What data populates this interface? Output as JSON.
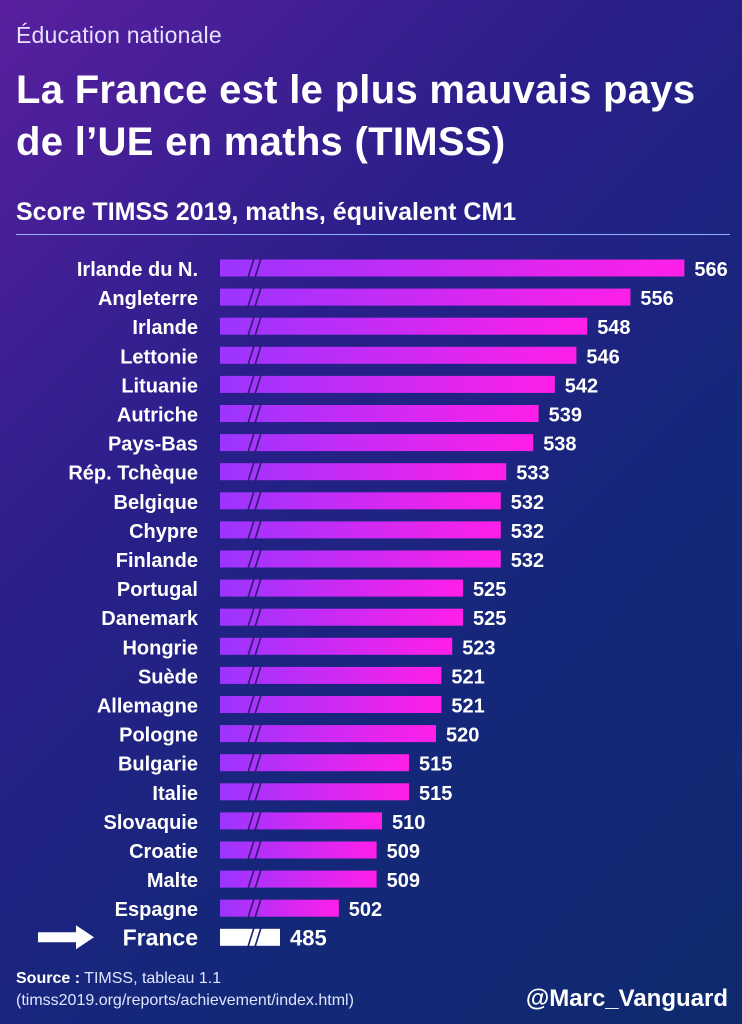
{
  "header": {
    "supertitle": "Éducation nationale",
    "title": "La France est le plus mauvais pays de l’UE en maths (TIMSS)",
    "subtitle": "Score TIMSS 2019, maths, équivalent CM1"
  },
  "footer": {
    "source_label": "Source :",
    "source_text": "TIMSS, tableau 1.1",
    "source_url": "(timss2019.org/reports/achievement/index.html)",
    "handle": "@Marc_Vanguard"
  },
  "chart_data": {
    "type": "bar",
    "orientation": "horizontal",
    "categories": [
      "Irlande du N.",
      "Angleterre",
      "Irlande",
      "Lettonie",
      "Lituanie",
      "Autriche",
      "Pays-Bas",
      "Rép. Tchèque",
      "Belgique",
      "Chypre",
      "Finlande",
      "Portugal",
      "Danemark",
      "Hongrie",
      "Suède",
      "Allemagne",
      "Pologne",
      "Bulgarie",
      "Italie",
      "Slovaquie",
      "Croatie",
      "Malte",
      "Espagne",
      "France"
    ],
    "values": [
      566,
      556,
      548,
      546,
      542,
      539,
      538,
      533,
      532,
      532,
      532,
      525,
      525,
      523,
      521,
      521,
      520,
      515,
      515,
      510,
      509,
      509,
      502,
      485
    ],
    "highlight": "France",
    "axis_break": true,
    "colors": {
      "bar_gradient_start": "#9b35ff",
      "bar_gradient_end": "#ff1fe8",
      "highlight": "#ffffff",
      "label": "#ffffff"
    }
  }
}
